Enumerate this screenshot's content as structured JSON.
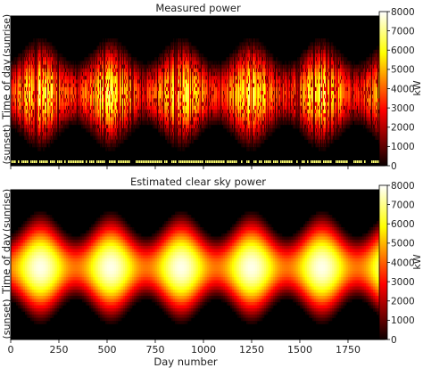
{
  "chart_data": [
    {
      "type": "heatmap",
      "title": "Measured power",
      "ylabel": "Time of day",
      "ytick_labels": [
        "(sunrise)",
        "(sunset)"
      ],
      "xlabel": "",
      "xlim": [
        0,
        1940
      ],
      "x_ticks": [
        0,
        250,
        500,
        750,
        1000,
        1250,
        1500,
        1750
      ],
      "x_tick_labels_shown": false,
      "colorbar": {
        "label": "kW",
        "range": [
          0,
          8000
        ],
        "ticks": [
          0,
          1000,
          2000,
          3000,
          4000,
          5000,
          6000,
          7000,
          8000
        ],
        "colormap": "hot"
      },
      "pattern": {
        "peak_kw": 7500,
        "seasonal_period_days": 365,
        "first_summer_peak_day": 150,
        "noisy_cloud_streaks": true,
        "bottom_missing_data_marks": true
      }
    },
    {
      "type": "heatmap",
      "title": "Estimated clear sky power",
      "ylabel": "Time of day",
      "ytick_labels": [
        "(sunrise)",
        "(sunset)"
      ],
      "xlabel": "Day number",
      "xlim": [
        0,
        1940
      ],
      "x_ticks": [
        0,
        250,
        500,
        750,
        1000,
        1250,
        1500,
        1750
      ],
      "x_tick_labels_shown": true,
      "colorbar": {
        "label": "kW",
        "range": [
          0,
          8000
        ],
        "ticks": [
          0,
          1000,
          2000,
          3000,
          4000,
          5000,
          6000,
          7000,
          8000
        ],
        "colormap": "hot"
      },
      "pattern": {
        "peak_kw": 7800,
        "seasonal_period_days": 365,
        "first_summer_peak_day": 150,
        "noisy_cloud_streaks": false
      }
    }
  ]
}
